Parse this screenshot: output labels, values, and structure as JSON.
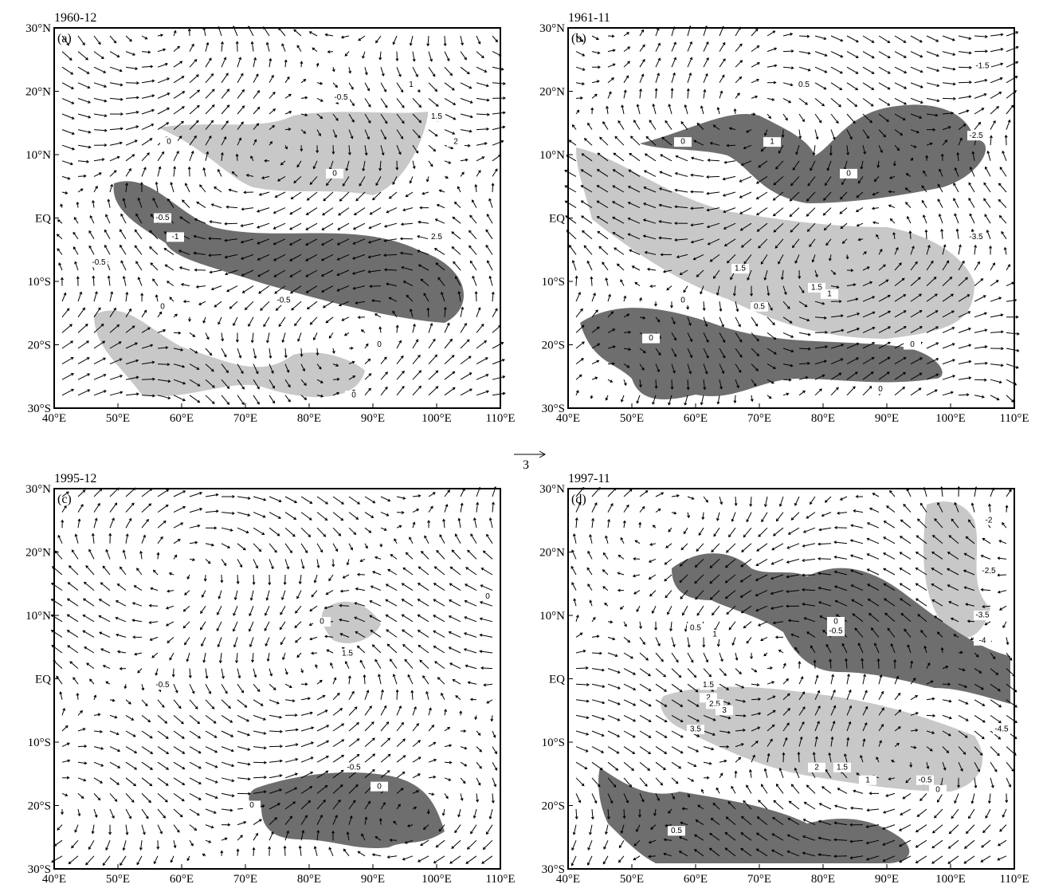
{
  "panels": [
    {
      "title": "1960-12",
      "label": "(a)",
      "xlim": [
        40,
        110
      ],
      "ylim": [
        -30,
        30
      ],
      "xticks": [
        {
          "value": 40,
          "label": "40°E"
        },
        {
          "value": 50,
          "label": "50°E"
        },
        {
          "value": 60,
          "label": "60°E"
        },
        {
          "value": 70,
          "label": "70°E"
        },
        {
          "value": 80,
          "label": "80°E"
        },
        {
          "value": 90,
          "label": "90°E"
        },
        {
          "value": 100,
          "label": "100°E"
        },
        {
          "value": 110,
          "label": "110°E"
        }
      ],
      "yticks": [
        {
          "value": 30,
          "label": "30°N"
        },
        {
          "value": 20,
          "label": "20°N"
        },
        {
          "value": 10,
          "label": "10°N"
        },
        {
          "value": 0,
          "label": "EQ"
        },
        {
          "value": -10,
          "label": "10°S"
        },
        {
          "value": -20,
          "label": "20°S"
        },
        {
          "value": -30,
          "label": "30°S"
        }
      ],
      "contour_labels": [
        {
          "value": 0,
          "lon": 58,
          "lat": 12
        },
        {
          "value": -0.5,
          "lon": 85,
          "lat": 19
        },
        {
          "value": 1,
          "lon": 96,
          "lat": 21
        },
        {
          "value": 1.5,
          "lon": 100,
          "lat": 16
        },
        {
          "value": 2,
          "lon": 103,
          "lat": 12
        },
        {
          "value": 0,
          "lon": 84,
          "lat": 7
        },
        {
          "value": -0.5,
          "lon": 57,
          "lat": 0
        },
        {
          "value": -1,
          "lon": 59,
          "lat": -3
        },
        {
          "value": -0.5,
          "lon": 47,
          "lat": -7
        },
        {
          "value": 2.5,
          "lon": 100,
          "lat": -3
        },
        {
          "value": -0.5,
          "lon": 76,
          "lat": -13
        },
        {
          "value": 0,
          "lon": 57,
          "lat": -14
        },
        {
          "value": 0,
          "lon": 91,
          "lat": -20
        },
        {
          "value": 0,
          "lon": 87,
          "lat": -28
        }
      ]
    },
    {
      "title": "1961-11",
      "label": "(b)",
      "xlim": [
        40,
        110
      ],
      "ylim": [
        -30,
        30
      ],
      "xticks": [
        {
          "value": 40,
          "label": "40°E"
        },
        {
          "value": 50,
          "label": "50°E"
        },
        {
          "value": 60,
          "label": "60°E"
        },
        {
          "value": 70,
          "label": "70°E"
        },
        {
          "value": 80,
          "label": "80°E"
        },
        {
          "value": 90,
          "label": "90°E"
        },
        {
          "value": 100,
          "label": "100°E"
        },
        {
          "value": 110,
          "label": "110°E"
        }
      ],
      "yticks": [
        {
          "value": 30,
          "label": "30°N"
        },
        {
          "value": 20,
          "label": "20°N"
        },
        {
          "value": 10,
          "label": "10°N"
        },
        {
          "value": 0,
          "label": "EQ"
        },
        {
          "value": -10,
          "label": "10°S"
        },
        {
          "value": -20,
          "label": "20°S"
        },
        {
          "value": -30,
          "label": "30°S"
        }
      ],
      "contour_labels": [
        {
          "value": -1.5,
          "lon": 105,
          "lat": 24
        },
        {
          "value": 0.5,
          "lon": 77,
          "lat": 21
        },
        {
          "value": 0,
          "lon": 58,
          "lat": 12
        },
        {
          "value": 1,
          "lon": 72,
          "lat": 12
        },
        {
          "value": -2.5,
          "lon": 104,
          "lat": 13
        },
        {
          "value": 0,
          "lon": 84,
          "lat": 7
        },
        {
          "value": -3.5,
          "lon": 104,
          "lat": -3
        },
        {
          "value": 1.5,
          "lon": 67,
          "lat": -8
        },
        {
          "value": 1.5,
          "lon": 79,
          "lat": -11
        },
        {
          "value": 1,
          "lon": 81,
          "lat": -12
        },
        {
          "value": 0,
          "lon": 58,
          "lat": -13
        },
        {
          "value": 0.5,
          "lon": 70,
          "lat": -14
        },
        {
          "value": 0,
          "lon": 53,
          "lat": -19
        },
        {
          "value": 0,
          "lon": 94,
          "lat": -20
        },
        {
          "value": 0,
          "lon": 89,
          "lat": -27
        }
      ]
    },
    {
      "title": "1995-12",
      "label": "(c)",
      "xlim": [
        40,
        110
      ],
      "ylim": [
        -30,
        30
      ],
      "xticks": [
        {
          "value": 40,
          "label": "40°E"
        },
        {
          "value": 50,
          "label": "50°E"
        },
        {
          "value": 60,
          "label": "60°E"
        },
        {
          "value": 70,
          "label": "70°E"
        },
        {
          "value": 80,
          "label": "80°E"
        },
        {
          "value": 90,
          "label": "90°E"
        },
        {
          "value": 100,
          "label": "100°E"
        },
        {
          "value": 110,
          "label": "110°E"
        }
      ],
      "yticks": [
        {
          "value": 30,
          "label": "30°N"
        },
        {
          "value": 20,
          "label": "20°N"
        },
        {
          "value": 10,
          "label": "10°N"
        },
        {
          "value": 0,
          "label": "EQ"
        },
        {
          "value": -10,
          "label": "10°S"
        },
        {
          "value": -20,
          "label": "20°S"
        },
        {
          "value": -30,
          "label": "30°S"
        }
      ],
      "contour_labels": [
        {
          "value": 0,
          "lon": 82,
          "lat": 9
        },
        {
          "value": 1.5,
          "lon": 86,
          "lat": 4
        },
        {
          "value": -0.5,
          "lon": 57,
          "lat": -1
        },
        {
          "value": -0.5,
          "lon": 87,
          "lat": -14
        },
        {
          "value": 0,
          "lon": 91,
          "lat": -17
        },
        {
          "value": 0,
          "lon": 71,
          "lat": -20
        },
        {
          "value": 0,
          "lon": 108,
          "lat": 13
        }
      ]
    },
    {
      "title": "1997-11",
      "label": "(d)",
      "xlim": [
        40,
        110
      ],
      "ylim": [
        -30,
        30
      ],
      "xticks": [
        {
          "value": 40,
          "label": "40°E"
        },
        {
          "value": 50,
          "label": "50°E"
        },
        {
          "value": 60,
          "label": "60°E"
        },
        {
          "value": 70,
          "label": "70°E"
        },
        {
          "value": 80,
          "label": "80°E"
        },
        {
          "value": 90,
          "label": "90°E"
        },
        {
          "value": 100,
          "label": "100°E"
        },
        {
          "value": 110,
          "label": "110°E"
        }
      ],
      "yticks": [
        {
          "value": 30,
          "label": "30°N"
        },
        {
          "value": 20,
          "label": "20°N"
        },
        {
          "value": 10,
          "label": "10°N"
        },
        {
          "value": 0,
          "label": "EQ"
        },
        {
          "value": -10,
          "label": "10°S"
        },
        {
          "value": -20,
          "label": "20°S"
        },
        {
          "value": -30,
          "label": "30°S"
        }
      ],
      "contour_labels": [
        {
          "value": -2,
          "lon": 106,
          "lat": 25
        },
        {
          "value": -2.5,
          "lon": 106,
          "lat": 17
        },
        {
          "value": 0.5,
          "lon": 60,
          "lat": 8
        },
        {
          "value": 1,
          "lon": 63,
          "lat": 7
        },
        {
          "value": -3.5,
          "lon": 105,
          "lat": 10
        },
        {
          "value": 0,
          "lon": 82,
          "lat": 9
        },
        {
          "value": -0.5,
          "lon": 82,
          "lat": 7.5
        },
        {
          "value": -4,
          "lon": 105,
          "lat": 6
        },
        {
          "value": 1.5,
          "lon": 62,
          "lat": -1
        },
        {
          "value": 2,
          "lon": 62,
          "lat": -3
        },
        {
          "value": 2.5,
          "lon": 63,
          "lat": -4
        },
        {
          "value": 3,
          "lon": 64.5,
          "lat": -5
        },
        {
          "value": 3.5,
          "lon": 60,
          "lat": -8
        },
        {
          "value": -4.5,
          "lon": 108,
          "lat": -8
        },
        {
          "value": 2,
          "lon": 79,
          "lat": -14
        },
        {
          "value": 1.5,
          "lon": 83,
          "lat": -14
        },
        {
          "value": 1,
          "lon": 87,
          "lat": -16
        },
        {
          "value": -0.5,
          "lon": 96,
          "lat": -16
        },
        {
          "value": 0,
          "lon": 98,
          "lat": -17.5
        },
        {
          "value": 0.5,
          "lon": 57,
          "lat": -24
        }
      ]
    }
  ],
  "reference_vector": {
    "value": 3
  }
}
